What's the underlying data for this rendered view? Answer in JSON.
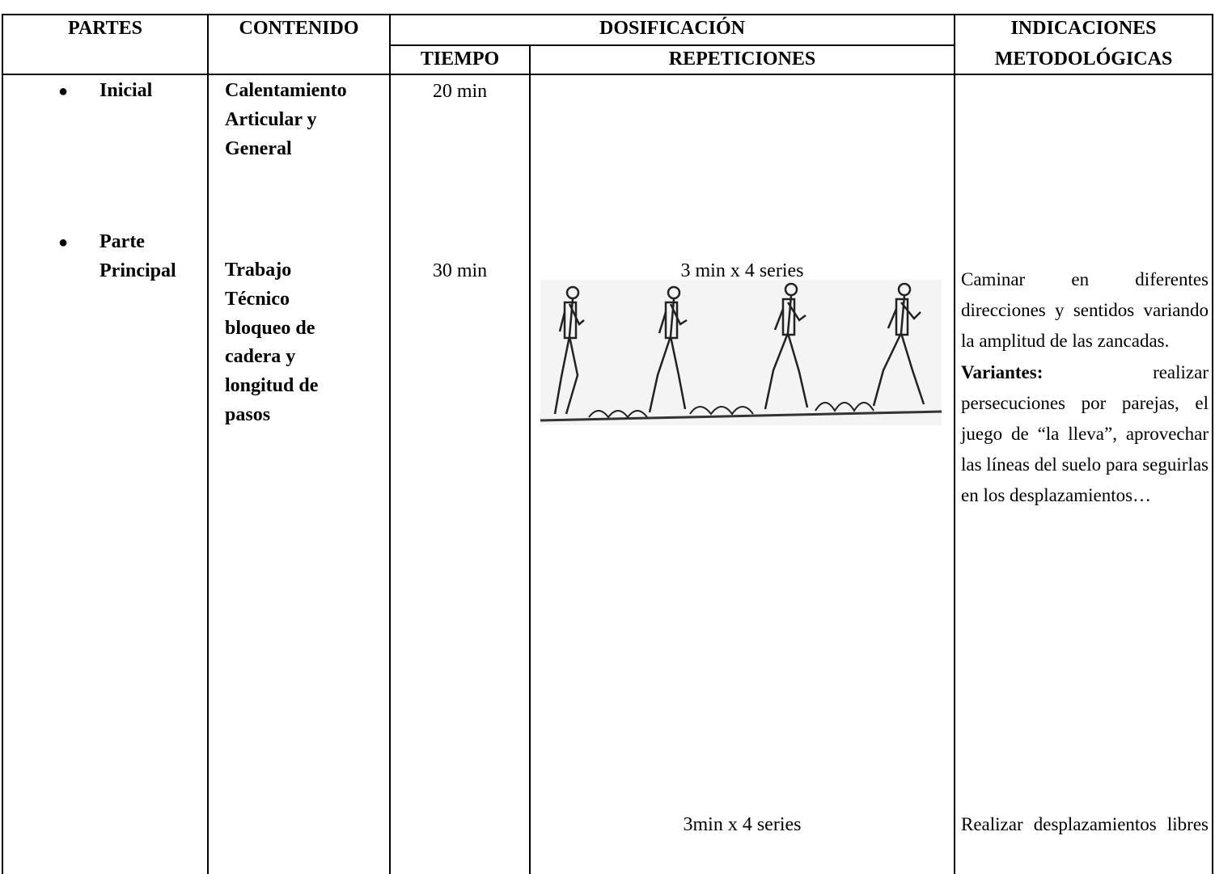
{
  "table": {
    "header": {
      "partes": "PARTES",
      "contenido": "CONTENIDO",
      "dosificacion": "DOSIFICACIÓN",
      "tiempo": "TIEMPO",
      "repeticiones": "REPETICIONES",
      "indicaciones": [
        "INDICACIONES",
        "METODOLÓGICAS"
      ]
    },
    "rows": [
      {
        "parte": [
          "Inicial"
        ],
        "contenido": [
          "Calentamiento",
          "Articular y",
          "General"
        ],
        "tiempo": "20 min"
      },
      {
        "parte": [
          "Parte",
          "Principal"
        ],
        "contenido": [
          "Trabajo",
          "Técnico",
          "bloqueo de",
          "cadera y",
          "longitud de",
          "pasos"
        ],
        "tiempo": "30 min",
        "repeticiones": [
          "3 min x 4 series",
          "3min x 4 series"
        ],
        "indicaciones": [
          {
            "text": "Caminar en diferentes direcciones y sentidos variando la amplitud de las zancadas."
          },
          {
            "label": "Variantes:",
            "text": "realizar persecuciones por parejas, el juego de “la lleva”, aprovechar las líneas del suelo para seguirlas en los desplazamientos…"
          },
          {
            "text": "Realizar desplazamientos libres"
          }
        ]
      }
    ]
  }
}
